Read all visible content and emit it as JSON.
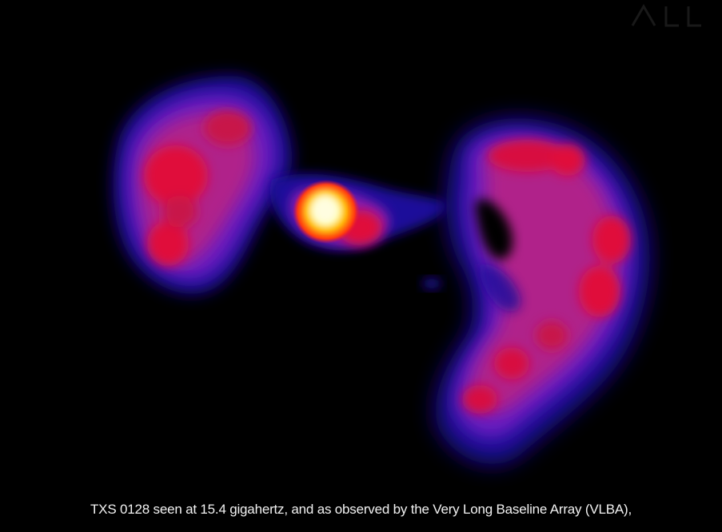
{
  "caption": "TXS 0128 seen at 15.4 gigahertz, and as observed by the Very Long Baseline Array (VLBA),",
  "colors": {
    "background": "#000000",
    "outer_glow": "#1a0a9a",
    "mid_glow": "#8a1fb0",
    "inner_glow": "#e0103a",
    "hot_core": "#fff8b0",
    "caption_text": "#f2f2f2"
  },
  "image": {
    "subject": "radio-source-false-color-map",
    "watermark_icon": "faint-logo-watermark"
  }
}
